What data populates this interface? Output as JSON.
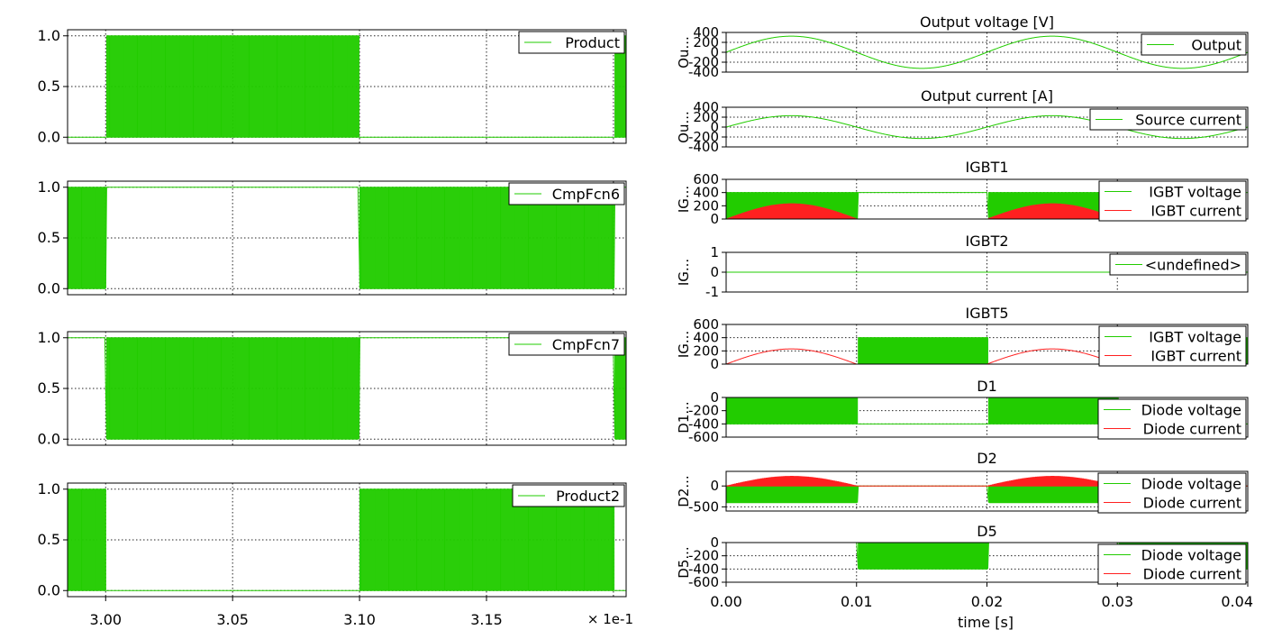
{
  "colors": {
    "green": "#22cc00",
    "red": "#ff2020",
    "axis": "#000000"
  },
  "left_xaxis": {
    "ticks": [
      "3.00",
      "3.05",
      "3.10",
      "3.15"
    ],
    "multiplier": "× 1e-1"
  },
  "right_xaxis": {
    "ticks": [
      "0.00",
      "0.01",
      "0.02",
      "0.03",
      "0.04"
    ],
    "label": "time [s]"
  },
  "chart_data": [
    {
      "id": "L1",
      "type": "line",
      "title": "",
      "ylabel": "",
      "x_range": [
        0.2985,
        0.3205
      ],
      "ylim": [
        -0.06,
        1.06
      ],
      "yticks": [
        "1.0",
        "0.5",
        "0.0"
      ],
      "series": [
        {
          "name": "Product",
          "color": "green",
          "kind": "pwm",
          "switching_windows": [
            [
              0.3,
              0.31
            ],
            [
              0.32,
              0.321
            ]
          ],
          "low": 0,
          "high": 1,
          "idle": 0
        }
      ]
    },
    {
      "id": "L2",
      "type": "line",
      "title": "",
      "ylabel": "",
      "x_range": [
        0.2985,
        0.3205
      ],
      "ylim": [
        -0.06,
        1.06
      ],
      "yticks": [
        "1.0",
        "0.5",
        "0.0"
      ],
      "series": [
        {
          "name": "CmpFcn6",
          "color": "green",
          "kind": "pwm",
          "switching_windows": [
            [
              0.2985,
              0.3
            ],
            [
              0.31,
              0.32
            ]
          ],
          "low": 0,
          "high": 1,
          "idle": 1
        }
      ]
    },
    {
      "id": "L3",
      "type": "line",
      "title": "",
      "ylabel": "",
      "x_range": [
        0.2985,
        0.3205
      ],
      "ylim": [
        -0.06,
        1.06
      ],
      "yticks": [
        "1.0",
        "0.5",
        "0.0"
      ],
      "series": [
        {
          "name": "CmpFcn7",
          "color": "green",
          "kind": "pwm",
          "switching_windows": [
            [
              0.3,
              0.31
            ],
            [
              0.32,
              0.321
            ]
          ],
          "low": 0,
          "high": 1,
          "idle": 1
        }
      ]
    },
    {
      "id": "L4",
      "type": "line",
      "title": "",
      "ylabel": "",
      "x_range": [
        0.2985,
        0.3205
      ],
      "ylim": [
        -0.06,
        1.06
      ],
      "yticks": [
        "1.0",
        "0.5",
        "0.0"
      ],
      "series": [
        {
          "name": "Product2",
          "color": "green",
          "kind": "pwm",
          "switching_windows": [
            [
              0.2985,
              0.3
            ],
            [
              0.31,
              0.32
            ]
          ],
          "low": 0,
          "high": 1,
          "idle": 0
        }
      ]
    },
    {
      "id": "R1",
      "type": "line",
      "title": "Output voltage [V]",
      "ylabel": "Ou...",
      "x_range": [
        0,
        0.04
      ],
      "ylim": [
        -400,
        400
      ],
      "yticks": [
        "400",
        "200",
        "0",
        "-200",
        "-400"
      ],
      "series": [
        {
          "name": "Output",
          "color": "green",
          "kind": "sine",
          "amplitude": 325,
          "freq": 50
        }
      ]
    },
    {
      "id": "R2",
      "type": "line",
      "title": "Output current [A]",
      "ylabel": "Ou...",
      "x_range": [
        0,
        0.04
      ],
      "ylim": [
        -400,
        400
      ],
      "yticks": [
        "400",
        "200",
        "0",
        "-200",
        "-400"
      ],
      "series": [
        {
          "name": "Source current",
          "color": "green",
          "kind": "sine",
          "amplitude": 230,
          "freq": 50
        }
      ]
    },
    {
      "id": "R3",
      "type": "line",
      "title": "IGBT1",
      "ylabel": "IG...",
      "x_range": [
        0,
        0.04
      ],
      "ylim": [
        0,
        600
      ],
      "yticks": [
        "600",
        "400",
        "200",
        "0"
      ],
      "series": [
        {
          "name": "IGBT voltage",
          "color": "green",
          "kind": "pwm",
          "low": 0,
          "high": 400,
          "idle": 400,
          "switching_windows": [
            [
              0,
              0.01
            ],
            [
              0.02,
              0.03
            ]
          ]
        },
        {
          "name": "IGBT current",
          "color": "red",
          "kind": "pwm_sine",
          "low": 0,
          "amplitude": 230,
          "freq": 50,
          "switching_windows": [
            [
              0,
              0.01
            ],
            [
              0.02,
              0.03
            ]
          ]
        }
      ]
    },
    {
      "id": "R4",
      "type": "line",
      "title": "IGBT2",
      "ylabel": "IG...",
      "x_range": [
        0,
        0.04
      ],
      "ylim": [
        -1,
        1
      ],
      "yticks": [
        "1",
        "0",
        "-1"
      ],
      "series": [
        {
          "name": "<undefined>",
          "color": "green",
          "kind": "const",
          "value": 0
        }
      ]
    },
    {
      "id": "R5",
      "type": "line",
      "title": "IGBT5",
      "ylabel": "IG...",
      "x_range": [
        0,
        0.04
      ],
      "ylim": [
        0,
        600
      ],
      "yticks": [
        "600",
        "400",
        "200",
        "0"
      ],
      "series": [
        {
          "name": "IGBT voltage",
          "color": "green",
          "kind": "pwm",
          "low": 0,
          "high": 400,
          "idle": 0,
          "switching_windows": [
            [
              0.01,
              0.02
            ],
            [
              0.03,
              0.04
            ]
          ]
        },
        {
          "name": "IGBT current",
          "color": "red",
          "kind": "abs_sine_gated",
          "amplitude": 230,
          "freq": 50,
          "active_windows": [
            [
              0,
              0.01
            ],
            [
              0.02,
              0.03
            ]
          ]
        }
      ]
    },
    {
      "id": "R6",
      "type": "line",
      "title": "D1",
      "ylabel": "D1...",
      "x_range": [
        0,
        0.04
      ],
      "ylim": [
        -600,
        0
      ],
      "yticks": [
        "0",
        "-200",
        "-400",
        "-600"
      ],
      "series": [
        {
          "name": "Diode voltage",
          "color": "green",
          "kind": "pwm",
          "low": -400,
          "high": 0,
          "idle": -400,
          "switching_windows": [
            [
              0,
              0.01
            ],
            [
              0.02,
              0.03
            ]
          ]
        },
        {
          "name": "Diode current",
          "color": "red",
          "kind": "const",
          "value": 0
        }
      ]
    },
    {
      "id": "R7",
      "type": "line",
      "title": "D2",
      "ylabel": "D2...",
      "x_range": [
        0,
        0.04
      ],
      "ylim": [
        -600,
        350
      ],
      "yticks": [
        "0",
        "-500"
      ],
      "series": [
        {
          "name": "Diode voltage",
          "color": "green",
          "kind": "pwm",
          "low": -400,
          "high": 0,
          "idle": 0,
          "switching_windows": [
            [
              0,
              0.01
            ],
            [
              0.02,
              0.03
            ]
          ]
        },
        {
          "name": "Diode current",
          "color": "red",
          "kind": "pwm_sine",
          "low": 0,
          "amplitude": 230,
          "freq": 50,
          "switching_windows": [
            [
              0,
              0.01
            ],
            [
              0.02,
              0.03
            ]
          ]
        }
      ]
    },
    {
      "id": "R8",
      "type": "line",
      "title": "D5",
      "ylabel": "D5...",
      "x_range": [
        0,
        0.04
      ],
      "ylim": [
        -600,
        0
      ],
      "yticks": [
        "0",
        "-200",
        "-400",
        "-600"
      ],
      "series": [
        {
          "name": "Diode voltage",
          "color": "green",
          "kind": "pwm",
          "low": -400,
          "high": 0,
          "idle": 0,
          "switching_windows": [
            [
              0.01,
              0.02
            ],
            [
              0.03,
              0.04
            ]
          ]
        },
        {
          "name": "Diode current",
          "color": "red",
          "kind": "const",
          "value": 0
        }
      ]
    }
  ]
}
